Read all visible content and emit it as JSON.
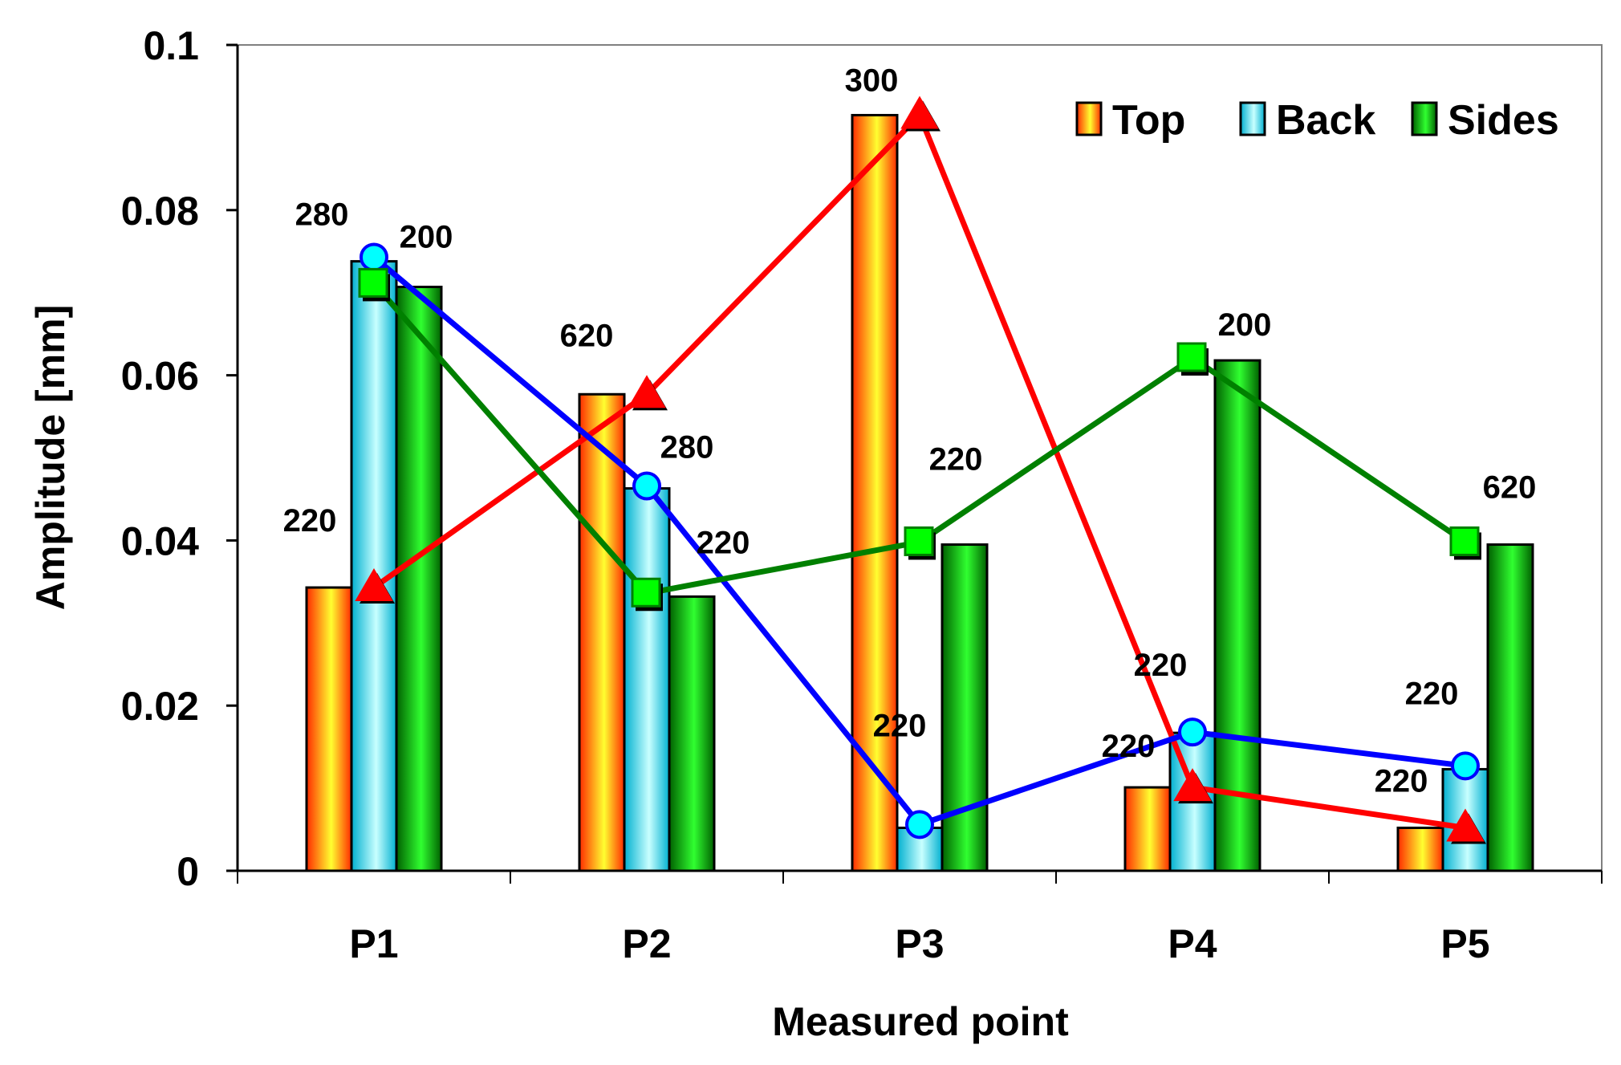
{
  "chart_data": {
    "type": "bar",
    "xlabel": "Measured point",
    "ylabel": "Amplitude [mm]",
    "ylim": [
      0,
      0.1
    ],
    "yticks": [
      "0",
      "0.02",
      "0.04",
      "0.06",
      "0.08",
      "0.1"
    ],
    "categories": [
      "P1",
      "P2",
      "P3",
      "P4",
      "P5"
    ],
    "grid": false,
    "legend_position": "top-right",
    "series": [
      {
        "name": "Top",
        "color_start": "#ff2a00",
        "color_end": "#ffff30",
        "line_color": "#ff0000",
        "marker": "triangle",
        "values": [
          0.0343,
          0.0577,
          0.0915,
          0.0101,
          0.0052
        ],
        "line_values": [
          0.0343,
          0.0577,
          0.0915,
          0.0101,
          0.0052
        ],
        "labels": [
          "220",
          "620",
          "300",
          "220",
          "220"
        ]
      },
      {
        "name": "Back",
        "color_start": "#00b0d0",
        "color_end": "#c8ffff",
        "line_color": "#0000ff",
        "marker": "circle",
        "values": [
          0.0738,
          0.0463,
          0.0052,
          0.0167,
          0.0123
        ],
        "line_values": [
          0.0743,
          0.0466,
          0.0056,
          0.0168,
          0.0127
        ],
        "labels": [
          "280",
          "280",
          "220",
          "220",
          "220"
        ]
      },
      {
        "name": "Sides",
        "color_start": "#006000",
        "color_end": "#30ff30",
        "line_color": "#008000",
        "marker": "square",
        "values": [
          0.0707,
          0.0332,
          0.0395,
          0.0618,
          0.0395
        ],
        "line_values": [
          0.0711,
          0.0336,
          0.0398,
          0.0621,
          0.0398
        ],
        "labels": [
          "200",
          "220",
          "220",
          "200",
          "620"
        ]
      }
    ]
  }
}
